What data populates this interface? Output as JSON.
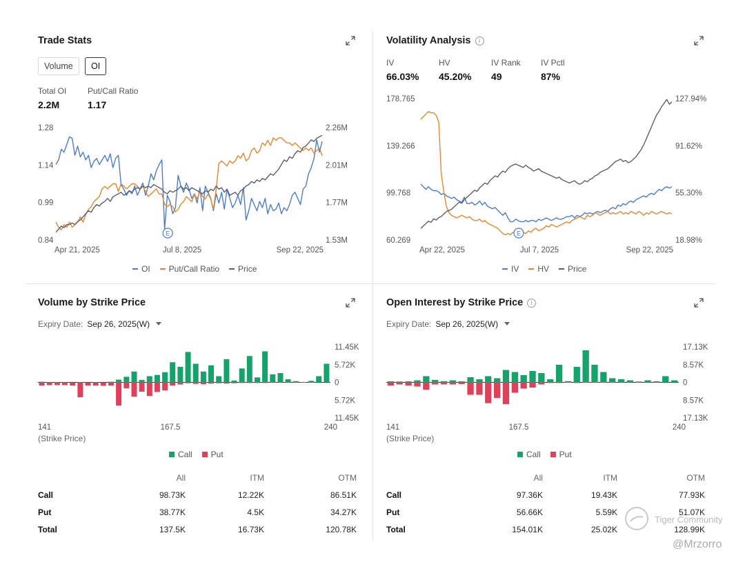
{
  "trade_stats": {
    "title": "Trade Stats",
    "tabs": [
      "Volume",
      "OI"
    ],
    "active_tab": "OI",
    "stats": [
      {
        "label": "Total OI",
        "value": "2.2M"
      },
      {
        "label": "Put/Call Ratio",
        "value": "1.17"
      }
    ],
    "legend": [
      {
        "name": "OI",
        "color": "#4a7bd0"
      },
      {
        "name": "Put/Call Ratio",
        "color": "#e8862c"
      },
      {
        "name": "Price",
        "color": "#5a5f6b"
      }
    ],
    "event_marker": "E"
  },
  "volatility": {
    "title": "Volatility Analysis",
    "stats": [
      {
        "label": "IV",
        "value": "66.03%"
      },
      {
        "label": "HV",
        "value": "45.20%"
      },
      {
        "label": "IV Rank",
        "value": "49"
      },
      {
        "label": "IV Pctl",
        "value": "87%"
      }
    ],
    "legend": [
      {
        "name": "IV",
        "color": "#4a7bd0"
      },
      {
        "name": "HV",
        "color": "#e8862c"
      },
      {
        "name": "Price",
        "color": "#5a5f6b"
      }
    ],
    "event_marker": "E"
  },
  "volume_strike": {
    "title": "Volume by Strike Price",
    "expiry_label": "Expiry Date:",
    "expiry_value": "Sep 26, 2025(W)",
    "strike_caption": "(Strike Price)",
    "legend": [
      {
        "name": "Call",
        "color": "#13a36b"
      },
      {
        "name": "Put",
        "color": "#e0405a"
      }
    ],
    "table": {
      "headers": [
        "All",
        "ITM",
        "OTM"
      ],
      "rows": [
        {
          "label": "Call",
          "all": "98.73K",
          "itm": "12.22K",
          "otm": "86.51K"
        },
        {
          "label": "Put",
          "all": "38.77K",
          "itm": "4.5K",
          "otm": "34.27K"
        },
        {
          "label": "Total",
          "all": "137.5K",
          "itm": "16.73K",
          "otm": "120.78K"
        }
      ]
    }
  },
  "oi_strike": {
    "title": "Open Interest by Strike Price",
    "expiry_label": "Expiry Date:",
    "expiry_value": "Sep 26, 2025(W)",
    "strike_caption": "(Strike Price)",
    "legend": [
      {
        "name": "Call",
        "color": "#13a36b"
      },
      {
        "name": "Put",
        "color": "#e0405a"
      }
    ],
    "table": {
      "headers": [
        "All",
        "ITM",
        "OTM"
      ],
      "rows": [
        {
          "label": "Call",
          "all": "97.36K",
          "itm": "19.43K",
          "otm": "77.93K"
        },
        {
          "label": "Put",
          "all": "56.66K",
          "itm": "5.59K",
          "otm": "51.07K"
        },
        {
          "label": "Total",
          "all": "154.01K",
          "itm": "25.02K",
          "otm": "128.99K"
        }
      ]
    }
  },
  "watermark": {
    "brand": "Tiger Community",
    "user": "@Mrzorro"
  },
  "chart_data": [
    {
      "type": "line",
      "id": "trade",
      "x_ticks": [
        "Apr 21, 2025",
        "Jul 8, 2025",
        "Sep 22, 2025"
      ],
      "left_axis": {
        "ticks": [
          "1.28",
          "1.14",
          "0.99",
          "0.84"
        ],
        "ylim": [
          0.84,
          1.28
        ]
      },
      "right_axis": {
        "ticks": [
          "2.26M",
          "2.01M",
          "1.77M",
          "1.53M"
        ],
        "ylim": [
          1.53,
          2.26
        ]
      },
      "series": [
        {
          "name": "OI",
          "axis": "right",
          "color": "#4a7bd0",
          "values": [
            2.02,
            2.05,
            2.12,
            2.1,
            2.15,
            2.2,
            2.19,
            2.08,
            2.14,
            2.07,
            2.1,
            2.05,
            2.08,
            2.0,
            2.04,
            2.06,
            2.02,
            2.05,
            2.08,
            2.04,
            2.09,
            2.0,
            2.06,
            2.08,
            1.89,
            1.86,
            1.82,
            1.85,
            1.83,
            1.88,
            1.82,
            1.86,
            1.9,
            1.82,
            1.88,
            1.96,
            1.92,
            1.98,
            2.02,
            2.05,
            1.6,
            1.82,
            1.78,
            1.7,
            1.74,
            1.95,
            1.88,
            1.84,
            1.9,
            1.86,
            1.8,
            1.83,
            1.77,
            1.87,
            1.72,
            1.88,
            1.84,
            1.8,
            1.72,
            1.83,
            1.77,
            1.84,
            1.73,
            1.86,
            1.8,
            1.74,
            1.77,
            1.82,
            1.76,
            1.87,
            1.66,
            1.72,
            1.8,
            1.76,
            1.72,
            1.78,
            1.74,
            1.8,
            1.7,
            1.76,
            1.72,
            1.73,
            1.77,
            1.7,
            1.74,
            1.72,
            1.76,
            1.82,
            1.84,
            1.8,
            1.76,
            1.86,
            1.88,
            1.96,
            2.0,
            2.06,
            2.18,
            2.1,
            2.17
          ]
        },
        {
          "name": "Put/Call Ratio",
          "axis": "left",
          "color": "#e8862c",
          "values": [
            0.91,
            0.89,
            0.88,
            0.9,
            0.89,
            0.91,
            0.89,
            0.9,
            0.91,
            0.93,
            0.91,
            0.94,
            0.96,
            0.97,
            0.99,
            1.0,
            1.01,
            1.04,
            1.05,
            1.04,
            1.05,
            1.06,
            1.06,
            1.03,
            1.06,
            1.05,
            1.04,
            1.05,
            1.06,
            1.06,
            1.05,
            1.04,
            1.05,
            1.03,
            1.01,
            1.02,
            1.03,
            1.04,
            1.02,
            1.02,
            0.98,
            0.97,
            0.98,
            0.97,
            0.95,
            0.96,
            0.98,
            0.99,
            1.01,
            1.0,
            0.99,
            1.02,
            1.0,
            1.03,
            1.01,
            1.0,
            1.02,
            1.0,
            0.96,
            1.04,
            1.14,
            1.15,
            1.14,
            1.13,
            1.15,
            1.14,
            1.15,
            1.17,
            1.16,
            1.18,
            1.15,
            1.16,
            1.19,
            1.2,
            1.18,
            1.19,
            1.22,
            1.21,
            1.23,
            1.21,
            1.24,
            1.23,
            1.24,
            1.24,
            1.23,
            1.22,
            1.22,
            1.21,
            1.22,
            1.21,
            1.2,
            1.19,
            1.2,
            1.19,
            1.2,
            1.18,
            1.19,
            1.2,
            1.17
          ]
        },
        {
          "name": "Price",
          "axis": "right",
          "color": "#5a5f6b",
          "values": [
            1.58,
            1.6,
            1.62,
            1.61,
            1.63,
            1.63,
            1.64,
            1.63,
            1.65,
            1.66,
            1.68,
            1.7,
            1.72,
            1.71,
            1.74,
            1.76,
            1.75,
            1.77,
            1.78,
            1.8,
            1.78,
            1.81,
            1.82,
            1.83,
            1.84,
            1.82,
            1.83,
            1.85,
            1.84,
            1.86,
            1.87,
            1.86,
            1.88,
            1.87,
            1.88,
            1.87,
            1.89,
            1.88,
            1.87,
            1.86,
            1.84,
            1.83,
            1.85,
            1.84,
            1.85,
            1.86,
            1.88,
            1.86,
            1.87,
            1.85,
            1.87,
            1.86,
            1.85,
            1.84,
            1.83,
            1.85,
            1.84,
            1.86,
            1.85,
            1.88,
            1.86,
            1.87,
            1.84,
            1.86,
            1.82,
            1.83,
            1.84,
            1.82,
            1.85,
            1.86,
            1.88,
            1.89,
            1.91,
            1.9,
            1.92,
            1.91,
            1.93,
            1.92,
            1.94,
            1.96,
            1.95,
            1.97,
            1.99,
            2.02,
            2.05,
            2.04,
            2.07,
            2.06,
            2.09,
            2.11,
            2.1,
            2.13,
            2.14,
            2.16,
            2.18,
            2.17,
            2.19,
            2.2,
            2.21
          ]
        }
      ],
      "event_marker": {
        "label": "E",
        "x_fraction": 0.42
      }
    },
    {
      "type": "line",
      "id": "volatility",
      "x_ticks": [
        "Apr 22, 2025",
        "Jul 7, 2025",
        "Sep 22, 2025"
      ],
      "left_axis": {
        "ticks": [
          "178.765",
          "139.266",
          "99.768",
          "60.269"
        ],
        "ylim": [
          60.269,
          178.765
        ]
      },
      "right_axis": {
        "ticks": [
          "127.94%",
          "91.62%",
          "55.30%",
          "18.98%"
        ],
        "ylim": [
          18.98,
          127.94
        ]
      },
      "series": [
        {
          "name": "IV",
          "axis": "right",
          "color": "#4a7bd0",
          "values": [
            62,
            60,
            58,
            60,
            58,
            57,
            57,
            56,
            54,
            55,
            53,
            52,
            51,
            52,
            50,
            49,
            48,
            52,
            47,
            47,
            48,
            46,
            47,
            49,
            46,
            48,
            45,
            44,
            43,
            44,
            42,
            40,
            38,
            40,
            36,
            33,
            33,
            35,
            34,
            33,
            33,
            34,
            33,
            34,
            34,
            33,
            35,
            34,
            35,
            36,
            35,
            34,
            35,
            36,
            35,
            35,
            36,
            37,
            37,
            38,
            36,
            38,
            37,
            38,
            40,
            39,
            40,
            39,
            40,
            41,
            40,
            41,
            42,
            41,
            43,
            44,
            43,
            46,
            45,
            47,
            46,
            48,
            49,
            48,
            50,
            51,
            52,
            53,
            52,
            54,
            55,
            54,
            56,
            58,
            57,
            59,
            60,
            59,
            60
          ]
        },
        {
          "name": "HV",
          "axis": "right",
          "color": "#e8862c",
          "values": [
            112,
            114,
            116,
            118,
            117,
            117,
            115,
            110,
            70,
            56,
            45,
            40,
            38,
            37,
            36,
            37,
            38,
            37,
            36,
            37,
            35,
            34,
            34,
            35,
            33,
            34,
            32,
            31,
            30,
            29,
            28,
            26,
            24,
            23,
            24,
            23,
            25,
            24,
            25,
            26,
            25,
            24,
            26,
            25,
            27,
            28,
            26,
            27,
            28,
            30,
            29,
            31,
            30,
            29,
            30,
            31,
            32,
            33,
            32,
            34,
            35,
            36,
            37,
            36,
            35,
            38,
            37,
            38,
            40,
            39,
            38,
            39,
            40,
            41,
            39,
            40,
            39,
            40,
            41,
            39,
            40,
            39,
            41,
            40,
            39,
            41,
            40,
            38,
            40,
            39,
            41,
            40,
            39,
            40,
            41,
            40,
            39,
            40,
            39
          ]
        },
        {
          "name": "Price",
          "axis": "left",
          "color": "#5a5f6b",
          "values": [
            70,
            72,
            74,
            76,
            75,
            78,
            77,
            79,
            80,
            82,
            84,
            85,
            86,
            88,
            90,
            92,
            91,
            94,
            96,
            98,
            100,
            102,
            101,
            104,
            106,
            108,
            107,
            110,
            112,
            114,
            113,
            116,
            118,
            117,
            120,
            122,
            123,
            124,
            123,
            122,
            121,
            123,
            121,
            120,
            118,
            119,
            120,
            118,
            117,
            116,
            115,
            114,
            113,
            112,
            113,
            111,
            110,
            109,
            108,
            109,
            110,
            108,
            107,
            108,
            110,
            109,
            111,
            112,
            114,
            115,
            117,
            118,
            119,
            120,
            122,
            124,
            126,
            127,
            128,
            126,
            127,
            125,
            126,
            128,
            130,
            133,
            136,
            140,
            145,
            150,
            155,
            160,
            165,
            168,
            172,
            175,
            178,
            174,
            176
          ]
        }
      ],
      "event_marker": {
        "label": "E",
        "x_fraction": 0.39
      }
    },
    {
      "type": "bar",
      "id": "volume_by_strike",
      "x_ticks": [
        "141",
        "167.5",
        "240"
      ],
      "y_ticks": [
        "11.45K",
        "5.72K",
        "0",
        "5.72K",
        "11.45K"
      ],
      "ylim": [
        -11.45,
        11.45
      ],
      "unit": "K",
      "series": [
        {
          "name": "Call",
          "color": "#13a36b",
          "values": [
            0.2,
            0.1,
            0.1,
            0.1,
            0,
            0.1,
            0,
            0.1,
            0,
            0.2,
            0.9,
            1.8,
            3.5,
            0.8,
            2.0,
            2.4,
            3.3,
            6.5,
            5.0,
            9.8,
            6.0,
            3.5,
            5.5,
            2.0,
            7.5,
            0.6,
            4.5,
            8.5,
            1.6,
            10.0,
            2.6,
            3.0,
            1.0,
            0.4,
            0.1,
            0.5,
            2.0,
            6.0
          ]
        },
        {
          "name": "Put",
          "color": "#e0405a",
          "values": [
            1.0,
            0.9,
            0.9,
            0.9,
            1.0,
            4.8,
            1.0,
            1.0,
            1.1,
            1.0,
            7.5,
            1.9,
            4.6,
            3.0,
            4.4,
            3.1,
            2.6,
            1.0,
            0.7,
            0.3,
            0.5,
            0.6,
            0.4,
            0.3,
            0.4,
            0.3,
            0.2,
            0.2,
            0.2,
            0.2,
            0.1,
            0.1,
            0.1,
            0.1,
            0.1,
            0.1,
            0,
            0
          ]
        }
      ]
    },
    {
      "type": "bar",
      "id": "oi_by_strike",
      "x_ticks": [
        "141",
        "167.5",
        "240"
      ],
      "y_ticks": [
        "17.13K",
        "8.57K",
        "0",
        "8.57K",
        "17.13K"
      ],
      "ylim": [
        -17.13,
        17.13
      ],
      "unit": "K",
      "series": [
        {
          "name": "Call",
          "color": "#13a36b",
          "values": [
            0.5,
            0.4,
            0.5,
            1.0,
            3.0,
            1.2,
            0.6,
            1.0,
            0.5,
            2.5,
            1.5,
            3.0,
            2.0,
            6.0,
            5.0,
            3.5,
            5.5,
            4.5,
            1.5,
            8.5,
            0.6,
            7.5,
            15.5,
            8.5,
            5.0,
            2.0,
            1.5,
            1.0,
            0.4,
            1.0,
            0.5,
            3.0,
            1.0
          ]
        },
        {
          "name": "Put",
          "color": "#e0405a",
          "values": [
            1.5,
            1.0,
            1.5,
            2.0,
            3.5,
            1.0,
            1.0,
            1.0,
            0.8,
            6.0,
            6.0,
            10.0,
            7.5,
            10.5,
            5.0,
            3.0,
            2.5,
            1.0,
            0.3,
            0.3,
            0.2,
            0.3,
            0.2,
            0.2,
            0.2,
            0.2,
            0.1,
            0.1,
            0.1,
            0.1,
            0.1,
            0,
            0
          ]
        }
      ]
    }
  ]
}
